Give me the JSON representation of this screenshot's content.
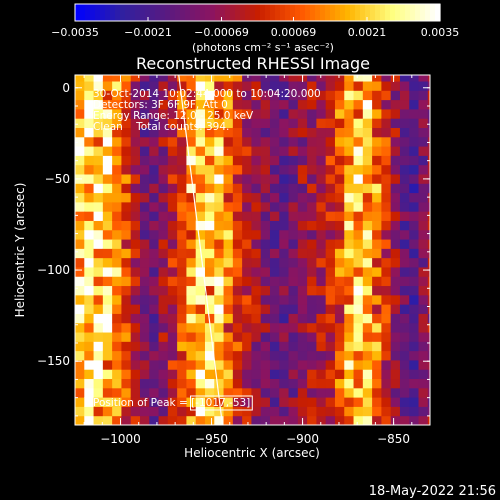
{
  "chart_data": {
    "type": "heatmap",
    "title": "Reconstructed RHESSI Image",
    "xlabel": "Heliocentric X (arcsec)",
    "ylabel": "Heliocentric Y (arcsec)",
    "xlim": [
      -1025,
      -830
    ],
    "ylim": [
      -185,
      7
    ],
    "x_ticks": [
      -1000,
      -950,
      -900,
      -850
    ],
    "x_tick_labels": [
      "−1000",
      "−950",
      "−900",
      "−850"
    ],
    "y_ticks": [
      0,
      -50,
      -100,
      -150
    ],
    "y_tick_labels": [
      "0",
      "−50",
      "−100",
      "−150"
    ],
    "colorbar": {
      "range": [
        -0.0035,
        0.0035
      ],
      "ticks": [
        -0.0035,
        -0.0021,
        -0.00069,
        0.00069,
        0.0021,
        0.0035
      ],
      "tick_labels": [
        "−0.0035",
        "−0.0021",
        "−0.00069",
        "0.00069",
        "0.0021",
        "0.0035"
      ],
      "units": "(photons cm⁻² s⁻¹ asec⁻²)",
      "colors": [
        "#0000ff",
        "#3020a0",
        "#5a1a80",
        "#8c1460",
        "#c81e00",
        "#ff5a00",
        "#ffb400",
        "#ffff80",
        "#ffffff"
      ]
    },
    "annotations": [
      "30-Oct-2014 10:02:44.000 to 10:04:20.000",
      "Detectors: 3F 6F 9F, Att 0",
      "Energy Range: 12.0 - 25.0 keV",
      "Clean    Total counts: 394."
    ],
    "peak_label": "Position of Peak = [-1017,-53]",
    "peak": [
      -1017,
      -53
    ],
    "limb_line": [
      [
        -968,
        7
      ],
      [
        -944,
        -185
      ]
    ],
    "image_bands": [
      {
        "x_center": -1015,
        "width": 18,
        "amplitude": 1.0
      },
      {
        "x_center": -952,
        "width": 14,
        "amplitude": 0.95
      },
      {
        "x_center": -868,
        "width": 12,
        "amplitude": 0.85
      },
      {
        "x_center": -985,
        "width": 8,
        "amplitude": -0.35
      },
      {
        "x_center": -912,
        "width": 10,
        "amplitude": -0.3
      },
      {
        "x_center": -840,
        "width": 8,
        "amplitude": -0.4
      }
    ]
  },
  "footer_timestamp": "18-May-2022 21:56"
}
